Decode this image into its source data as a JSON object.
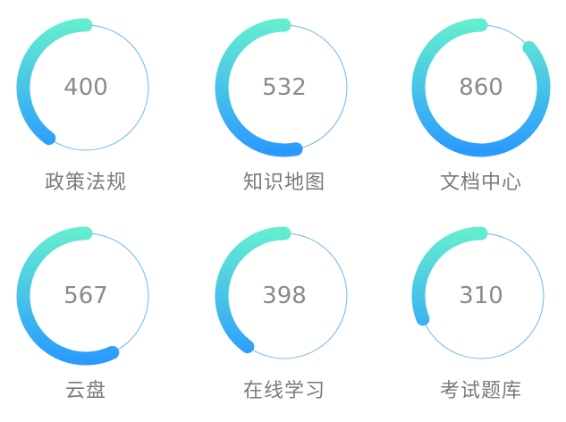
{
  "gradient": {
    "start": "#64EDD0",
    "end": "#2A9AFF"
  },
  "track_color": "#6FB6EA",
  "items": [
    {
      "label": "政策法规",
      "value": "400",
      "progress": 0.4
    },
    {
      "label": "知识地图",
      "value": "532",
      "progress": 0.53
    },
    {
      "label": "文档中心",
      "value": "860",
      "progress": 0.86
    },
    {
      "label": "云盘",
      "value": "567",
      "progress": 0.57
    },
    {
      "label": "在线学习",
      "value": "398",
      "progress": 0.4
    },
    {
      "label": "考试题库",
      "value": "310",
      "progress": 0.31
    }
  ]
}
